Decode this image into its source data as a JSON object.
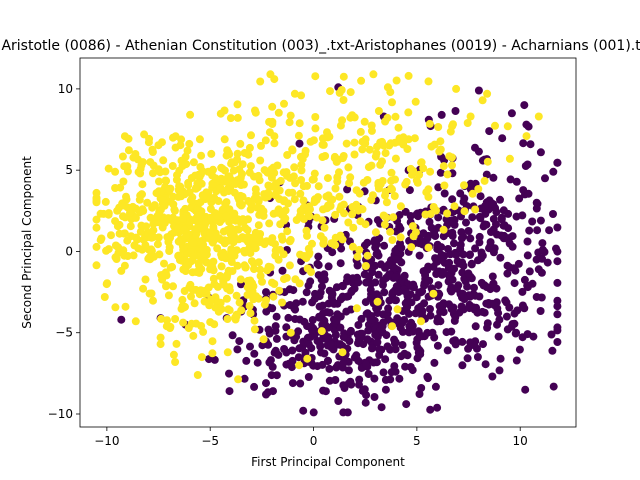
{
  "chart_data": {
    "type": "scatter",
    "title": "Aristotle (0086) - Athenian Constitution (003)_.txt-Aristophanes (0019) - Acharnians (001).txt",
    "xlabel": "First Principal Component",
    "ylabel": "Second Principal Component",
    "xlim": [
      -11.3,
      12.7
    ],
    "ylim": [
      -10.8,
      11.9
    ],
    "xticks": [
      -10,
      -5,
      0,
      5,
      10
    ],
    "xtick_labels": [
      "−10",
      "−5",
      "0",
      "5",
      "10"
    ],
    "yticks": [
      -10,
      -5,
      0,
      5,
      10
    ],
    "ytick_labels": [
      "−10",
      "−5",
      "0",
      "5",
      "10"
    ],
    "grid": false,
    "legend": "none",
    "series": [
      {
        "color": "#440154",
        "clusters": [
          {
            "center": [
              5.2,
              -2.0
            ],
            "spread": [
              3.0,
              2.8
            ],
            "count": 520
          },
          {
            "center": [
              0.8,
              -5.5
            ],
            "spread": [
              2.4,
              1.8
            ],
            "count": 260
          },
          {
            "center": [
              8.5,
              2.2
            ],
            "spread": [
              1.8,
              2.2
            ],
            "count": 110
          }
        ],
        "points": [
          [
            -0.5,
            -9.8
          ],
          [
            0.6,
            -8.6
          ],
          [
            1.2,
            -9.2
          ],
          [
            -1.0,
            -8.1
          ],
          [
            2.2,
            -8.2
          ],
          [
            3.5,
            -7.9
          ],
          [
            -2.3,
            -8.8
          ],
          [
            -2.3,
            -8.1
          ],
          [
            1.5,
            -8.4
          ],
          [
            4.8,
            -7.3
          ],
          [
            11.6,
            4.9
          ],
          [
            11.2,
            4.5
          ],
          [
            10.8,
            3.0
          ],
          [
            11.0,
            1.9
          ],
          [
            11.1,
            0.1
          ],
          [
            10.9,
            -1.1
          ],
          [
            10.8,
            -2.8
          ],
          [
            10.2,
            -3.5
          ],
          [
            9.8,
            -5.0
          ],
          [
            8.4,
            -4.7
          ],
          [
            8.2,
            -5.7
          ],
          [
            7.8,
            -5.8
          ],
          [
            11.0,
            6.1
          ],
          [
            10.5,
            6.6
          ],
          [
            10.3,
            7.8
          ],
          [
            10.2,
            9.0
          ],
          [
            8.5,
            7.4
          ],
          [
            9.6,
            8.5
          ],
          [
            8.0,
            9.9
          ],
          [
            6.2,
            8.4
          ],
          [
            1.2,
            10.1
          ],
          [
            3.4,
            8.3
          ],
          [
            4.6,
            5.0
          ],
          [
            1.0,
            2.0
          ],
          [
            -2.1,
            -1.3
          ],
          [
            -1.4,
            -2.5
          ],
          [
            -3.4,
            -3.0
          ],
          [
            -4.2,
            -4.1
          ],
          [
            -3.5,
            -3.7
          ],
          [
            -2.3,
            -2.9
          ],
          [
            -7.4,
            -4.1
          ],
          [
            -9.3,
            -4.2
          ],
          [
            -6.2,
            -4.5
          ],
          [
            -2.0,
            -3.5
          ],
          [
            -0.6,
            -0.6
          ]
        ]
      },
      {
        "color": "#fde725",
        "clusters": [
          {
            "center": [
              -5.6,
              1.8
            ],
            "spread": [
              2.3,
              2.4
            ],
            "count": 560
          },
          {
            "center": [
              -1.0,
              3.5
            ],
            "spread": [
              2.4,
              2.6
            ],
            "count": 210
          },
          {
            "center": [
              3.5,
              5.5
            ],
            "spread": [
              2.8,
              2.4
            ],
            "count": 150
          },
          {
            "center": [
              -4.6,
              -3.2
            ],
            "spread": [
              1.8,
              1.4
            ],
            "count": 80
          }
        ],
        "points": [
          [
            -10.3,
            0.7
          ],
          [
            -10.1,
            -2.8
          ],
          [
            -9.8,
            1.0
          ],
          [
            -9.5,
            2.5
          ],
          [
            -9.6,
            3.9
          ],
          [
            -9.6,
            4.9
          ],
          [
            -9.2,
            4.3
          ],
          [
            -9.3,
            -1.2
          ],
          [
            -9.1,
            -3.4
          ],
          [
            -8.6,
            -4.3
          ],
          [
            -8.2,
            7.2
          ],
          [
            -7.1,
            -4.6
          ],
          [
            -7.4,
            -5.3
          ],
          [
            -7.4,
            -5.7
          ],
          [
            -6.7,
            -6.8
          ],
          [
            -5.6,
            -7.6
          ],
          [
            -5.4,
            -6.5
          ],
          [
            -1.9,
            10.6
          ],
          [
            -0.9,
            9.7
          ],
          [
            -0.6,
            9.6
          ],
          [
            1.8,
            9.8
          ],
          [
            3.6,
            10.1
          ],
          [
            4.6,
            10.8
          ],
          [
            2.3,
            10.5
          ],
          [
            6.9,
            10.0
          ],
          [
            8.4,
            9.7
          ],
          [
            7.6,
            8.3
          ],
          [
            9.4,
            7.7
          ],
          [
            10.9,
            8.3
          ],
          [
            9.5,
            5.7
          ],
          [
            6.7,
            5.3
          ],
          [
            -2.0,
            8.9
          ],
          [
            -4.0,
            8.2
          ],
          [
            -4.3,
            6.9
          ],
          [
            -5.5,
            6.9
          ],
          [
            -6.1,
            6.2
          ],
          [
            -6.8,
            7.0
          ],
          [
            1.4,
            -6.2
          ],
          [
            0.4,
            -4.9
          ],
          [
            -0.7,
            -7.0
          ],
          [
            -0.3,
            -6.6
          ],
          [
            -1.1,
            -5.0
          ],
          [
            -2.3,
            -3.0
          ],
          [
            -1.9,
            -2.0
          ],
          [
            2.1,
            -3.5
          ],
          [
            3.8,
            -4.6
          ],
          [
            3.1,
            -3.1
          ],
          [
            5.2,
            -4.3
          ],
          [
            5.8,
            -2.6
          ],
          [
            0.9,
            0.5
          ]
        ]
      }
    ]
  }
}
